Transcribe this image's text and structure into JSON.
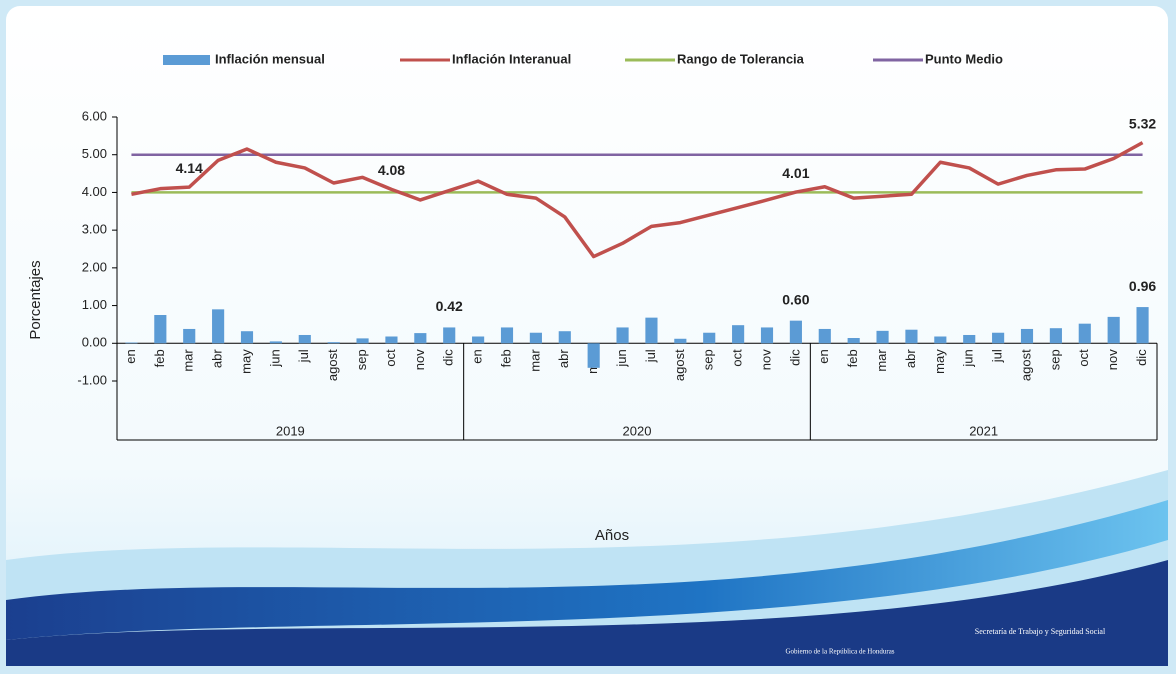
{
  "chart_data": {
    "type": "bar-line",
    "legend_position": "top",
    "ylabel": "Porcentajes",
    "xlabel": "Años",
    "ylim": [
      -1,
      6
    ],
    "yticks": [
      {
        "value": -1,
        "label": "-1.00"
      },
      {
        "value": 0,
        "label": "0.00"
      },
      {
        "value": 1,
        "label": "1.00"
      },
      {
        "value": 2,
        "label": "2.00"
      },
      {
        "value": 3,
        "label": "3.00"
      },
      {
        "value": 4,
        "label": "4.00"
      },
      {
        "value": 5,
        "label": "5.00"
      },
      {
        "value": 6,
        "label": "6.00"
      }
    ],
    "categories": [
      "en",
      "feb",
      "mar",
      "abr",
      "may",
      "jun",
      "jul",
      "agost",
      "sep",
      "oct",
      "nov",
      "dic",
      "en",
      "feb",
      "mar",
      "abr",
      "may",
      "jun",
      "jul",
      "agost",
      "sep",
      "oct",
      "nov",
      "dic",
      "en",
      "feb",
      "mar",
      "abr",
      "may",
      "jun",
      "jul",
      "agost",
      "sep",
      "oct",
      "nov",
      "dic"
    ],
    "years": [
      "2019",
      "2020",
      "2021"
    ],
    "series": [
      {
        "name": "Inflación mensual",
        "kind": "bar",
        "color": "#5b9bd5",
        "values": [
          0.02,
          0.75,
          0.38,
          0.9,
          0.32,
          0.05,
          0.22,
          0.03,
          0.13,
          0.18,
          0.27,
          0.42,
          0.18,
          0.42,
          0.28,
          0.32,
          -0.65,
          0.42,
          0.68,
          0.12,
          0.28,
          0.48,
          0.42,
          0.6,
          0.38,
          0.14,
          0.33,
          0.36,
          0.18,
          0.22,
          0.28,
          0.38,
          0.4,
          0.52,
          0.7,
          0.96
        ],
        "value_labels": [
          null,
          null,
          null,
          null,
          null,
          null,
          null,
          null,
          null,
          null,
          null,
          "0.42",
          null,
          null,
          null,
          null,
          null,
          null,
          null,
          null,
          null,
          null,
          null,
          "0.60",
          null,
          null,
          null,
          null,
          null,
          null,
          null,
          null,
          null,
          null,
          null,
          "0.96"
        ]
      },
      {
        "name": "Inflación Interanual",
        "kind": "line",
        "color": "#c0504d",
        "values": [
          3.95,
          4.1,
          4.14,
          4.85,
          5.15,
          4.8,
          4.65,
          4.25,
          4.4,
          4.08,
          3.8,
          4.05,
          4.3,
          3.95,
          3.85,
          3.35,
          2.3,
          2.65,
          3.1,
          3.2,
          3.4,
          3.6,
          3.8,
          4.01,
          4.15,
          3.85,
          3.9,
          3.95,
          4.8,
          4.65,
          4.22,
          4.45,
          4.6,
          4.62,
          4.9,
          5.32
        ],
        "value_labels": [
          null,
          null,
          "4.14",
          null,
          null,
          null,
          null,
          null,
          null,
          "4.08",
          null,
          null,
          null,
          null,
          null,
          null,
          null,
          null,
          null,
          null,
          null,
          null,
          null,
          "4.01",
          null,
          null,
          null,
          null,
          null,
          null,
          null,
          null,
          null,
          null,
          null,
          "5.32"
        ]
      },
      {
        "name": "Rango de Tolerancia",
        "kind": "line",
        "color": "#9bbb59",
        "values": [
          4,
          4,
          4,
          4,
          4,
          4,
          4,
          4,
          4,
          4,
          4,
          4,
          4,
          4,
          4,
          4,
          4,
          4,
          4,
          4,
          4,
          4,
          4,
          4,
          4,
          4,
          4,
          4,
          4,
          4,
          4,
          4,
          4,
          4,
          4,
          4
        ]
      },
      {
        "name": "Punto Medio",
        "kind": "line",
        "color": "#8064a2",
        "values": [
          5,
          5,
          5,
          5,
          5,
          5,
          5,
          5,
          5,
          5,
          5,
          5,
          5,
          5,
          5,
          5,
          5,
          5,
          5,
          5,
          5,
          5,
          5,
          5,
          5,
          5,
          5,
          5,
          5,
          5,
          5,
          5,
          5,
          5,
          5,
          5
        ]
      }
    ]
  },
  "footer": {
    "left_logo": "Gobierno de la República de Honduras",
    "right_logo": "Secretaría de Trabajo y Seguridad Social"
  }
}
